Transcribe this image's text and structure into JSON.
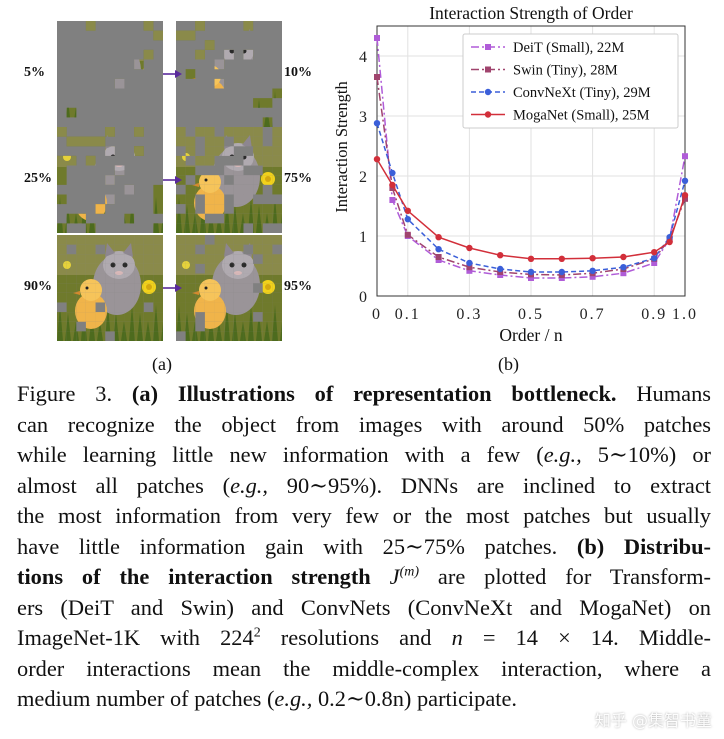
{
  "panel_a": {
    "rows": [
      {
        "left_label": "5%",
        "right_label": "10%",
        "left_fraction": 0.05,
        "right_fraction": 0.1
      },
      {
        "left_label": "25%",
        "right_label": "75%",
        "left_fraction": 0.25,
        "right_fraction": 0.75
      },
      {
        "left_label": "90%",
        "right_label": "95%",
        "left_fraction": 0.9,
        "right_fraction": 0.95
      }
    ],
    "sub_label": "(a)"
  },
  "panel_b": {
    "sub_label": "(b)"
  },
  "chart_data": {
    "type": "line",
    "title": "Interaction Strength of Order",
    "xlabel": "Order / n",
    "ylabel": "Interaction Strength",
    "x": [
      0,
      0.05,
      0.1,
      0.2,
      0.3,
      0.4,
      0.5,
      0.6,
      0.7,
      0.8,
      0.9,
      0.95,
      1.0
    ],
    "xticks": [
      "0",
      "0.1",
      "0.3",
      "0.5",
      "0.7",
      "0.9",
      "1.0"
    ],
    "xtick_values": [
      0,
      0.1,
      0.3,
      0.5,
      0.7,
      0.9,
      1.0
    ],
    "yticks": [
      "0",
      "1",
      "2",
      "3",
      "4"
    ],
    "xlim": [
      0,
      1.0
    ],
    "ylim": [
      0,
      4.5
    ],
    "legend_position": "top-right",
    "grid": true,
    "series": [
      {
        "name": "DeiT (Small), 22M",
        "color": "#b05cd8",
        "marker": "square",
        "dash": "8,3,2,3",
        "values": [
          4.3,
          1.6,
          1.0,
          0.6,
          0.42,
          0.35,
          0.3,
          0.3,
          0.32,
          0.38,
          0.55,
          0.95,
          2.33
        ]
      },
      {
        "name": "Swin (Tiny), 28M",
        "color": "#a0446e",
        "marker": "square",
        "dash": "8,3,2,3",
        "values": [
          3.65,
          1.8,
          1.02,
          0.65,
          0.48,
          0.4,
          0.36,
          0.35,
          0.38,
          0.45,
          0.62,
          0.95,
          1.62
        ]
      },
      {
        "name": "ConvNeXt (Tiny), 29M",
        "color": "#3b5fd9",
        "marker": "circle",
        "dash": "5,3",
        "values": [
          2.88,
          2.05,
          1.28,
          0.78,
          0.55,
          0.45,
          0.4,
          0.4,
          0.42,
          0.48,
          0.63,
          0.98,
          1.92
        ]
      },
      {
        "name": "MogaNet (Small), 25M",
        "color": "#d22f3a",
        "marker": "circle",
        "dash": "",
        "values": [
          2.28,
          1.85,
          1.42,
          0.98,
          0.8,
          0.68,
          0.62,
          0.62,
          0.63,
          0.65,
          0.73,
          0.9,
          1.68
        ]
      }
    ]
  },
  "caption": {
    "lines": [
      [
        {
          "t": "Figure 3. "
        },
        {
          "t": "(a) Illustrations of representation bottleneck.",
          "b": true
        },
        {
          "t": " Humans"
        }
      ],
      [
        {
          "t": "can recognize the object from images with around 50% patches"
        }
      ],
      [
        {
          "t": "while learning little new information with a few ("
        },
        {
          "t": "e.g.,",
          "i": true
        },
        {
          "t": " 5∼10%) or"
        }
      ],
      [
        {
          "t": "almost all patches ("
        },
        {
          "t": "e.g.,",
          "i": true
        },
        {
          "t": " 90∼95%).  DNNs are inclined to extract"
        }
      ],
      [
        {
          "t": "the most information from very few or the most patches but usually"
        }
      ],
      [
        {
          "t": "have little information gain with 25∼75% patches.  "
        },
        {
          "t": "(b) Distribu-",
          "b": true
        }
      ],
      [
        {
          "t": "tions of the interaction strength",
          "b": true
        },
        {
          "t": " J",
          "i": true
        },
        {
          "t": "(m)",
          "i": true,
          "sup": true
        },
        {
          "t": " are plotted for Transform-"
        }
      ],
      [
        {
          "t": "ers (DeiT and Swin) and ConvNets (ConvNeXt and MogaNet) on"
        }
      ],
      [
        {
          "t": "ImageNet-1K with 224"
        },
        {
          "t": "2",
          "sup": true
        },
        {
          "t": " resolutions and "
        },
        {
          "t": "n",
          "i": true
        },
        {
          "t": " = 14 × 14.  Middle-"
        }
      ],
      [
        {
          "t": "order interactions mean the middle-complex interaction, where a"
        }
      ],
      [
        {
          "t": "medium number of patches ("
        },
        {
          "t": "e.g.,",
          "i": true
        },
        {
          "t": " 0.2∼0.8n) participate."
        }
      ]
    ]
  },
  "watermark": "知乎 @集智书童"
}
